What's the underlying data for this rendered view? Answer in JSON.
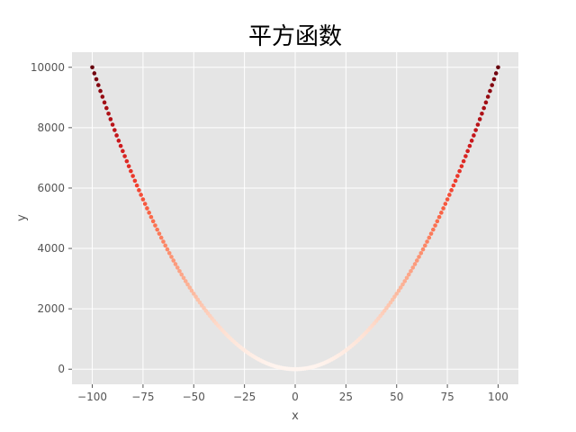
{
  "chart_data": {
    "type": "scatter",
    "title": "平方函数",
    "xlabel": "x",
    "ylabel": "y",
    "xlim": [
      -110,
      110
    ],
    "ylim": [
      -500,
      10500
    ],
    "xticks": [
      -100,
      -75,
      -50,
      -25,
      0,
      25,
      50,
      75,
      100
    ],
    "yticks": [
      0,
      2000,
      4000,
      6000,
      8000,
      10000
    ],
    "grid": true,
    "colormap": "Reds",
    "background": "#e5e5e5",
    "series": [
      {
        "function": "y = x^2",
        "x_range": [
          -100,
          100
        ],
        "points": 201,
        "color_by": "y"
      }
    ]
  }
}
